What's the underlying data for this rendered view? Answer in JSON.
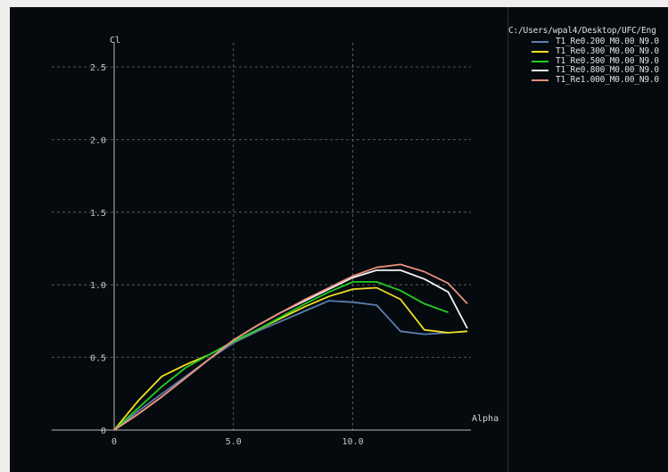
{
  "legend": {
    "path": "C:/Users/wpal4/Desktop/UFC/Eng",
    "entries": [
      {
        "label": "T1_Re0.200_M0.00_N9.0",
        "color": "#5b7fae"
      },
      {
        "label": "T1_Re0.300_M0.00_N9.0",
        "color": "#f0e020"
      },
      {
        "label": "T1_Re0.500_M0.00_N9.0",
        "color": "#22cc22"
      },
      {
        "label": "T1_Re0.800_M0.00_N9.0",
        "color": "#f4f4f4"
      },
      {
        "label": "T1_Re1.000_M0.00_N9.0",
        "color": "#e8907a"
      }
    ]
  },
  "chart_data": {
    "type": "line",
    "xlabel": "Alpha",
    "ylabel": "Cl",
    "xlim": [
      -2.5,
      14.9
    ],
    "ylim": [
      -0.15,
      2.75
    ],
    "x_ticks": [
      "0",
      "5.0",
      "10.0"
    ],
    "x_tick_values": [
      0,
      5,
      10
    ],
    "y_ticks": [
      "0",
      "0.5",
      "1.0",
      "1.5",
      "2.0",
      "2.5"
    ],
    "y_tick_values": [
      0,
      0.5,
      1.0,
      1.5,
      2.0,
      2.5
    ],
    "grid": true,
    "legend_position": "right-panel",
    "series": [
      {
        "name": "T1_Re0.200_M0.00_N9.0",
        "color": "#5b7fae",
        "x": [
          0,
          1,
          2,
          3,
          4,
          5,
          6,
          7,
          8,
          9,
          10,
          11,
          12,
          13,
          14
        ],
        "y": [
          0,
          0.13,
          0.25,
          0.37,
          0.49,
          0.6,
          0.68,
          0.75,
          0.82,
          0.89,
          0.88,
          0.86,
          0.68,
          0.66,
          0.67
        ]
      },
      {
        "name": "T1_Re0.300_M0.00_N9.0",
        "color": "#f0e020",
        "x": [
          0,
          1,
          2,
          3,
          4,
          5,
          6,
          7,
          8,
          9,
          10,
          11,
          12,
          13,
          14,
          14.8
        ],
        "y": [
          0,
          0.2,
          0.37,
          0.45,
          0.52,
          0.61,
          0.69,
          0.77,
          0.85,
          0.92,
          0.97,
          0.98,
          0.9,
          0.69,
          0.67,
          0.68
        ]
      },
      {
        "name": "T1_Re0.500_M0.00_N9.0",
        "color": "#22cc22",
        "x": [
          0,
          1,
          2,
          3,
          4,
          5,
          6,
          7,
          8,
          9,
          10,
          11,
          12,
          13,
          14
        ],
        "y": [
          0,
          0.15,
          0.3,
          0.43,
          0.52,
          0.61,
          0.69,
          0.78,
          0.87,
          0.95,
          1.02,
          1.02,
          0.96,
          0.87,
          0.81
        ]
      },
      {
        "name": "T1_Re0.800_M0.00_N9.0",
        "color": "#f4f4f4",
        "x": [
          0,
          1,
          2,
          3,
          4,
          5,
          6,
          7,
          8,
          9,
          10,
          11,
          12,
          13,
          14,
          14.8
        ],
        "y": [
          0,
          0.11,
          0.23,
          0.36,
          0.49,
          0.62,
          0.72,
          0.81,
          0.89,
          0.97,
          1.05,
          1.1,
          1.1,
          1.04,
          0.95,
          0.7
        ]
      },
      {
        "name": "T1_Re1.000_M0.00_N9.0",
        "color": "#e8907a",
        "x": [
          0,
          1,
          2,
          3,
          4,
          5,
          6,
          7,
          8,
          9,
          10,
          11,
          12,
          13,
          14,
          14.8
        ],
        "y": [
          0,
          0.11,
          0.23,
          0.36,
          0.49,
          0.62,
          0.72,
          0.81,
          0.9,
          0.98,
          1.06,
          1.12,
          1.14,
          1.09,
          1.01,
          0.87
        ]
      }
    ]
  }
}
